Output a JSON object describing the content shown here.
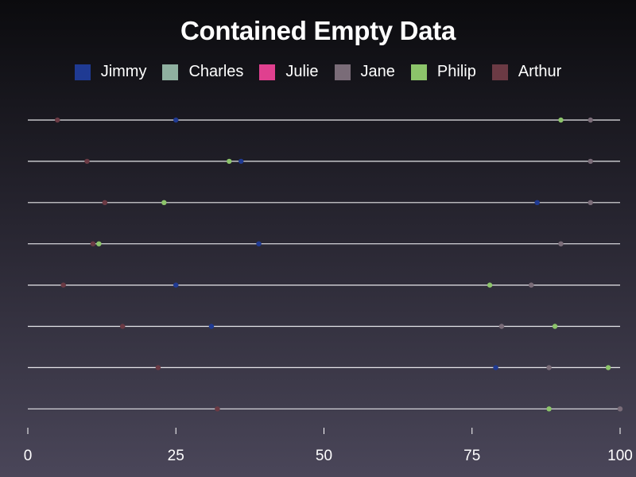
{
  "chart_data": {
    "type": "scatter",
    "title": "Contained Empty Data",
    "xlabel": "",
    "ylabel": "",
    "xlim": [
      0,
      100
    ],
    "xticks": [
      0,
      25,
      50,
      75,
      100
    ],
    "legend_position": "top",
    "rows": 8,
    "series": [
      {
        "name": "Jimmy",
        "color": "#1f3a93",
        "values": [
          25,
          36,
          86,
          39,
          25,
          31,
          79,
          null
        ]
      },
      {
        "name": "Charles",
        "color": "#8fb0a0",
        "values": [
          null,
          null,
          null,
          null,
          null,
          null,
          null,
          null
        ]
      },
      {
        "name": "Julie",
        "color": "#e0408f",
        "values": [
          null,
          null,
          null,
          null,
          null,
          null,
          null,
          null
        ]
      },
      {
        "name": "Jane",
        "color": "#7a6c78",
        "values": [
          95,
          95,
          95,
          90,
          85,
          80,
          88,
          100
        ]
      },
      {
        "name": "Philip",
        "color": "#8cc46a",
        "values": [
          90,
          34,
          23,
          12,
          78,
          89,
          98,
          88
        ]
      },
      {
        "name": "Arthur",
        "color": "#6b3a44",
        "values": [
          5,
          10,
          13,
          11,
          6,
          16,
          22,
          32
        ]
      }
    ]
  }
}
